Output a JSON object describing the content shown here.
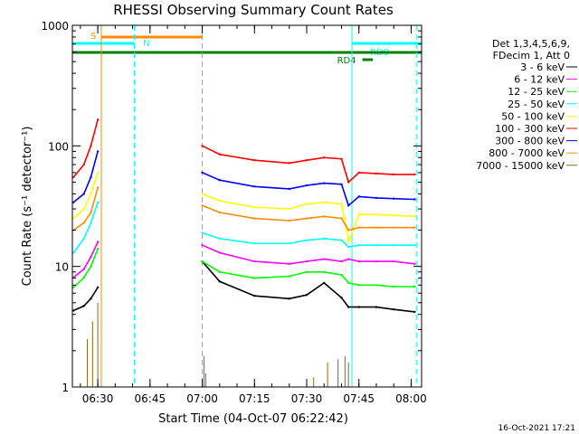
{
  "chart_data": {
    "type": "line",
    "title": "RHESSI Observing Summary Count Rates",
    "ylabel": "Count Rate (s⁻¹ detector⁻¹)",
    "xlabel": "Start Time (04-Oct-07 06:22:42)",
    "y_scale": "log",
    "ylim": [
      1,
      1000
    ],
    "xlim": [
      "06:22:42",
      "08:03:00"
    ],
    "y_ticks": [
      "1",
      "10",
      "100",
      "1000"
    ],
    "x_ticks": [
      "06:30",
      "06:45",
      "07:00",
      "07:15",
      "07:30",
      "07:45",
      "08:00"
    ],
    "grid": false,
    "legend": {
      "position": "right",
      "header": [
        "Det 1,3,4,5,6,9,",
        "FDecim 1, Att 0"
      ]
    },
    "footer": "16-Oct-2021 17:21",
    "series": [
      {
        "name": "3 - 6 keV",
        "color": "#000000",
        "x": [
          "06:23",
          "06:26",
          "06:28",
          "06:30",
          "07:00",
          "07:05",
          "07:15",
          "07:25",
          "07:30",
          "07:35",
          "07:40",
          "07:42",
          "07:45",
          "07:50",
          "07:55",
          "08:01"
        ],
        "y": [
          4.3,
          4.7,
          5.4,
          6.7,
          11,
          7.5,
          5.7,
          5.4,
          5.8,
          7.3,
          5.5,
          4.6,
          4.6,
          4.6,
          4.4,
          4.2
        ]
      },
      {
        "name": "6 - 12 keV",
        "color": "#ff00ff",
        "x": [
          "06:23",
          "06:26",
          "06:28",
          "06:30",
          "07:00",
          "07:05",
          "07:15",
          "07:25",
          "07:30",
          "07:35",
          "07:40",
          "07:42",
          "07:45",
          "07:50",
          "07:55",
          "08:01"
        ],
        "y": [
          8.1,
          9.5,
          12,
          16,
          15,
          13,
          11,
          10.5,
          11,
          11.5,
          11,
          11.5,
          11,
          11,
          11,
          10.5
        ]
      },
      {
        "name": "12 - 25 keV",
        "color": "#00ff00",
        "x": [
          "06:23",
          "06:26",
          "06:28",
          "06:30",
          "07:00",
          "07:05",
          "07:15",
          "07:25",
          "07:30",
          "07:35",
          "07:40",
          "07:42",
          "07:45",
          "07:50",
          "07:55",
          "08:01"
        ],
        "y": [
          6.7,
          8.1,
          10,
          14,
          11,
          9,
          8,
          8.3,
          9,
          9,
          8.5,
          7.3,
          7,
          7,
          6.8,
          6.8
        ]
      },
      {
        "name": "25 - 50 keV",
        "color": "#00ffff",
        "x": [
          "06:23",
          "06:26",
          "06:28",
          "06:30",
          "07:00",
          "07:05",
          "07:15",
          "07:25",
          "07:30",
          "07:35",
          "07:40",
          "07:42",
          "07:45",
          "07:50",
          "07:55",
          "08:01"
        ],
        "y": [
          13,
          17,
          23,
          34,
          19,
          17,
          15.5,
          15.5,
          16.5,
          17,
          16.5,
          14.5,
          15,
          15,
          15,
          15
        ]
      },
      {
        "name": "50 - 100 keV",
        "color": "#ffff00",
        "x": [
          "06:23",
          "06:26",
          "06:28",
          "06:30",
          "07:00",
          "07:05",
          "07:15",
          "07:25",
          "07:30",
          "07:35",
          "07:40",
          "07:42",
          "07:45",
          "07:50",
          "07:55",
          "08:01"
        ],
        "y": [
          25,
          30,
          40,
          60,
          40,
          35,
          31,
          30,
          33,
          34,
          33,
          16,
          27,
          27,
          26.5,
          26
        ]
      },
      {
        "name": "100 - 300 keV",
        "color": "#ff0000",
        "x": [
          "06:23",
          "06:26",
          "06:28",
          "06:30",
          "07:00",
          "07:05",
          "07:15",
          "07:25",
          "07:30",
          "07:35",
          "07:40",
          "07:42",
          "07:45",
          "07:50",
          "07:55",
          "08:01"
        ],
        "y": [
          55,
          70,
          100,
          165,
          100,
          85,
          76,
          72,
          76,
          80,
          78,
          50,
          60,
          59,
          58,
          58
        ]
      },
      {
        "name": "300 - 800 keV",
        "color": "#0000ff",
        "x": [
          "06:23",
          "06:26",
          "06:28",
          "06:30",
          "07:00",
          "07:05",
          "07:15",
          "07:25",
          "07:30",
          "07:35",
          "07:40",
          "07:42",
          "07:45",
          "07:50",
          "07:55",
          "08:01"
        ],
        "y": [
          34,
          40,
          55,
          90,
          60,
          52,
          46,
          44,
          47,
          49,
          48,
          32,
          38,
          37,
          36.5,
          36
        ]
      },
      {
        "name": "800 - 7000 keV",
        "color": "#ff8c00",
        "x": [
          "06:23",
          "06:26",
          "06:28",
          "06:30",
          "07:00",
          "07:05",
          "07:15",
          "07:25",
          "07:30",
          "07:35",
          "07:40",
          "07:42",
          "07:45",
          "07:50",
          "07:55",
          "08:01"
        ],
        "y": [
          20,
          23,
          28,
          45,
          32,
          28,
          25,
          24,
          25,
          26,
          25,
          20,
          21,
          21,
          21,
          21
        ]
      },
      {
        "name": "7000 - 15000 keV",
        "color": "#8b6914",
        "x": [
          "06:27:00",
          "06:28:30",
          "06:30:00",
          "07:00:30",
          "07:01:00",
          "07:32:00",
          "07:36:00",
          "07:39:00",
          "07:41:00",
          "07:42:00"
        ],
        "y": [
          2.5,
          3.5,
          5.0,
          1.8,
          1.3,
          1.2,
          1.6,
          1.7,
          1.8,
          1.6
        ]
      }
    ],
    "state_bars": [
      {
        "label": "S",
        "color": "#ff8c00",
        "start": "06:31:00",
        "end": "07:00:00",
        "level": 1
      },
      {
        "label": "N",
        "color": "#00ffff",
        "start": "06:22:42",
        "end": "06:40:30",
        "level": 2
      },
      {
        "label": "RD9",
        "color": "#00ffff",
        "start": "07:43:00",
        "end": "08:03:00",
        "level": 2
      },
      {
        "label": "",
        "color": "#008000",
        "start": "06:22:42",
        "end": "08:03:00",
        "level": 3
      },
      {
        "label": "RD4",
        "color": "#008000",
        "start": "07:46:00",
        "end": "07:49:00",
        "level": 4
      }
    ],
    "markers": [
      {
        "time": "06:31:00",
        "color": "#ff8c00",
        "style": "solid"
      },
      {
        "time": "06:40:30",
        "color": "#00ffff",
        "style": "dashed"
      },
      {
        "time": "07:00:00",
        "color": "#ff8c00",
        "style": "dashed"
      },
      {
        "time": "07:43:00",
        "color": "#00ffff",
        "style": "solid"
      },
      {
        "time": "08:01:30",
        "color": "#00ffff",
        "style": "dashed"
      }
    ]
  }
}
